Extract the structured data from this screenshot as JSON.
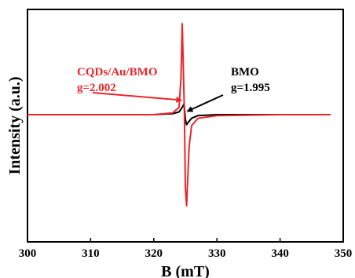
{
  "chart_data": {
    "type": "line",
    "xlabel": "B (mT)",
    "ylabel": "Intensity (a.u.)",
    "xlim": [
      300,
      350
    ],
    "xticks": [
      300,
      310,
      320,
      330,
      340,
      350
    ],
    "ylim": [
      -1.15,
      1.2
    ],
    "yticks_shown": false,
    "grid": false,
    "series": [
      {
        "name": "BMO",
        "color": "#000000",
        "x": [
          300,
          310,
          320,
          323,
          324.0,
          324.5,
          324.8,
          325.0,
          325.2,
          325.5,
          326,
          327,
          330,
          340,
          348
        ],
        "y": [
          0.0,
          0.0,
          0.0,
          0.01,
          0.03,
          0.08,
          0.12,
          -0.05,
          -0.11,
          -0.08,
          -0.04,
          -0.01,
          0.0,
          0.0,
          0.0
        ]
      },
      {
        "name": "CQDs/Au/BMO",
        "color": "#e8262b",
        "x": [
          300,
          310,
          320,
          323,
          324.0,
          324.3,
          324.5,
          324.7,
          324.85,
          325.0,
          325.2,
          325.6,
          326,
          327,
          330,
          340,
          348
        ],
        "y": [
          0.0,
          0.0,
          0.0,
          0.02,
          0.08,
          0.4,
          1.0,
          0.45,
          0.0,
          -0.8,
          -1.0,
          -0.35,
          -0.12,
          -0.04,
          -0.01,
          0.0,
          0.0
        ]
      }
    ],
    "annotations": [
      {
        "series": "CQDs/Au/BMO",
        "line1": "CQDs/Au/BMO",
        "line2": "g=2.002",
        "color": "#e8262b",
        "arrow_to": [
          324.3,
          0.16
        ]
      },
      {
        "series": "BMO",
        "line1": "BMO",
        "line2": "g=1.995",
        "color": "#000000",
        "arrow_to": [
          325.4,
          0.04
        ]
      }
    ]
  }
}
